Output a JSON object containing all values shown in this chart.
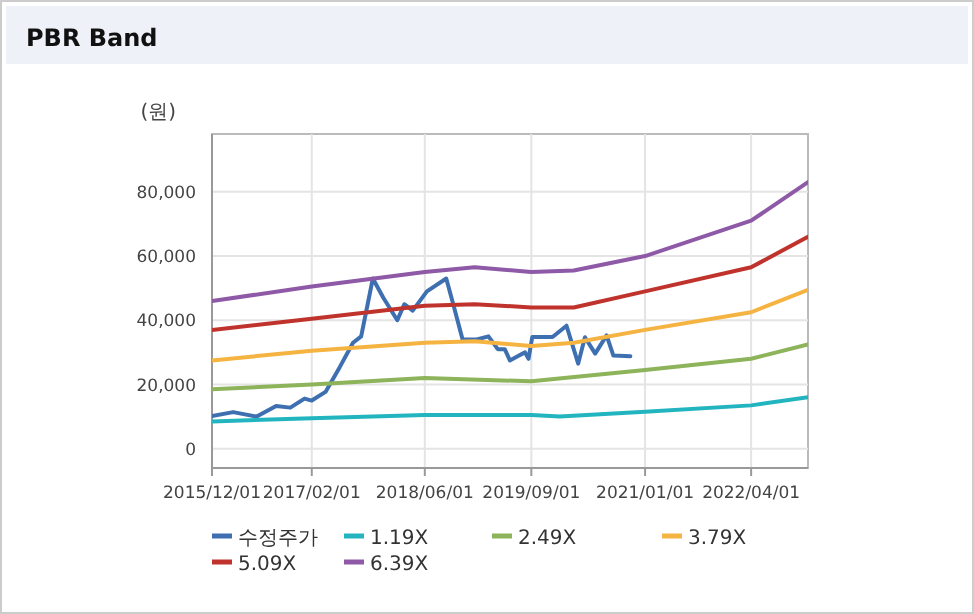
{
  "chart_data": {
    "type": "line",
    "title": "PBR Band",
    "ylabel": "(원)",
    "xlim": [
      "2015-12-01",
      "2022-12-01"
    ],
    "xticks": [
      {
        "value": "2015-12-01",
        "label": "2015/12/01"
      },
      {
        "value": "2017-02-01",
        "label": "2017/02/01"
      },
      {
        "value": "2018-06-01",
        "label": "2018/06/01"
      },
      {
        "value": "2019-09-01",
        "label": "2019/09/01"
      },
      {
        "value": "2021-01-01",
        "label": "2021/01/01"
      },
      {
        "value": "2022-04-01",
        "label": "2022/04/01"
      }
    ],
    "ylim": [
      -6000,
      98000
    ],
    "yticks": [
      {
        "value": 0,
        "label": "0"
      },
      {
        "value": 20000,
        "label": "20,000"
      },
      {
        "value": 40000,
        "label": "40,000"
      },
      {
        "value": 60000,
        "label": "60,000"
      },
      {
        "value": 80000,
        "label": "80,000"
      }
    ],
    "grid": true,
    "legend": "bottom",
    "marker": "none",
    "line_style": "solid",
    "series": [
      {
        "name": "수정주가",
        "color": "#3e6fb0",
        "x": [
          "2015-12-01",
          "2016-03-01",
          "2016-06-10",
          "2016-09-01",
          "2016-11-01",
          "2017-01-01",
          "2017-02-01",
          "2017-04-01",
          "2017-06-01",
          "2017-07-28",
          "2017-09-01",
          "2017-10-21",
          "2017-12-05",
          "2018-02-03",
          "2018-03-05",
          "2018-04-10",
          "2018-06-10",
          "2018-09-01",
          "2018-10-01",
          "2018-11-10",
          "2019-01-10",
          "2019-03-01",
          "2019-04-10",
          "2019-05-10",
          "2019-06-01",
          "2019-07-10",
          "2019-08-05",
          "2019-08-20",
          "2019-09-05",
          "2019-12-01",
          "2020-01-30",
          "2020-03-20",
          "2020-04-18",
          "2020-06-01",
          "2020-07-20",
          "2020-08-18",
          "2020-10-30"
        ],
        "values": [
          10200,
          11400,
          10000,
          13300,
          12800,
          15600,
          15000,
          17700,
          25400,
          33000,
          35000,
          53000,
          47000,
          40000,
          45000,
          43000,
          49000,
          53000,
          45000,
          34000,
          34000,
          35000,
          31000,
          31000,
          27500,
          29000,
          30000,
          28000,
          34800,
          34800,
          38300,
          26500,
          34700,
          29600,
          35300,
          29000,
          28800
        ]
      },
      {
        "name": "1.19X",
        "color": "#22b5c0",
        "x": [
          "2015-12-01",
          "2017-02-01",
          "2018-06-01",
          "2019-09-01",
          "2020-01-01",
          "2021-01-01",
          "2022-04-01",
          "2022-12-01"
        ],
        "values": [
          8500,
          9500,
          10500,
          10500,
          10000,
          11500,
          13500,
          16000
        ]
      },
      {
        "name": "2.49X",
        "color": "#8db35b",
        "x": [
          "2015-12-01",
          "2017-02-01",
          "2018-06-01",
          "2019-09-01",
          "2021-01-01",
          "2022-04-01",
          "2022-12-01"
        ],
        "values": [
          18500,
          20000,
          22000,
          21000,
          24500,
          28000,
          32500
        ]
      },
      {
        "name": "3.79X",
        "color": "#f5b342",
        "x": [
          "2015-12-01",
          "2017-02-01",
          "2018-06-01",
          "2019-01-01",
          "2019-09-01",
          "2020-03-01",
          "2021-01-01",
          "2022-04-01",
          "2022-12-01"
        ],
        "values": [
          27500,
          30500,
          33000,
          33500,
          32000,
          33000,
          37000,
          42500,
          49500
        ]
      },
      {
        "name": "5.09X",
        "color": "#c0332c",
        "x": [
          "2015-12-01",
          "2017-02-01",
          "2018-06-01",
          "2019-01-01",
          "2019-09-01",
          "2020-03-01",
          "2021-01-01",
          "2022-04-01",
          "2022-12-01"
        ],
        "values": [
          37000,
          40500,
          44500,
          45000,
          44000,
          44000,
          49000,
          56500,
          66000
        ]
      },
      {
        "name": "6.39X",
        "color": "#8e59a6",
        "x": [
          "2015-12-01",
          "2017-02-01",
          "2018-06-01",
          "2019-01-01",
          "2019-09-01",
          "2020-03-01",
          "2021-01-01",
          "2022-04-01",
          "2022-12-01"
        ],
        "values": [
          46000,
          50500,
          55000,
          56500,
          55000,
          55500,
          60000,
          71000,
          83000
        ]
      }
    ]
  }
}
